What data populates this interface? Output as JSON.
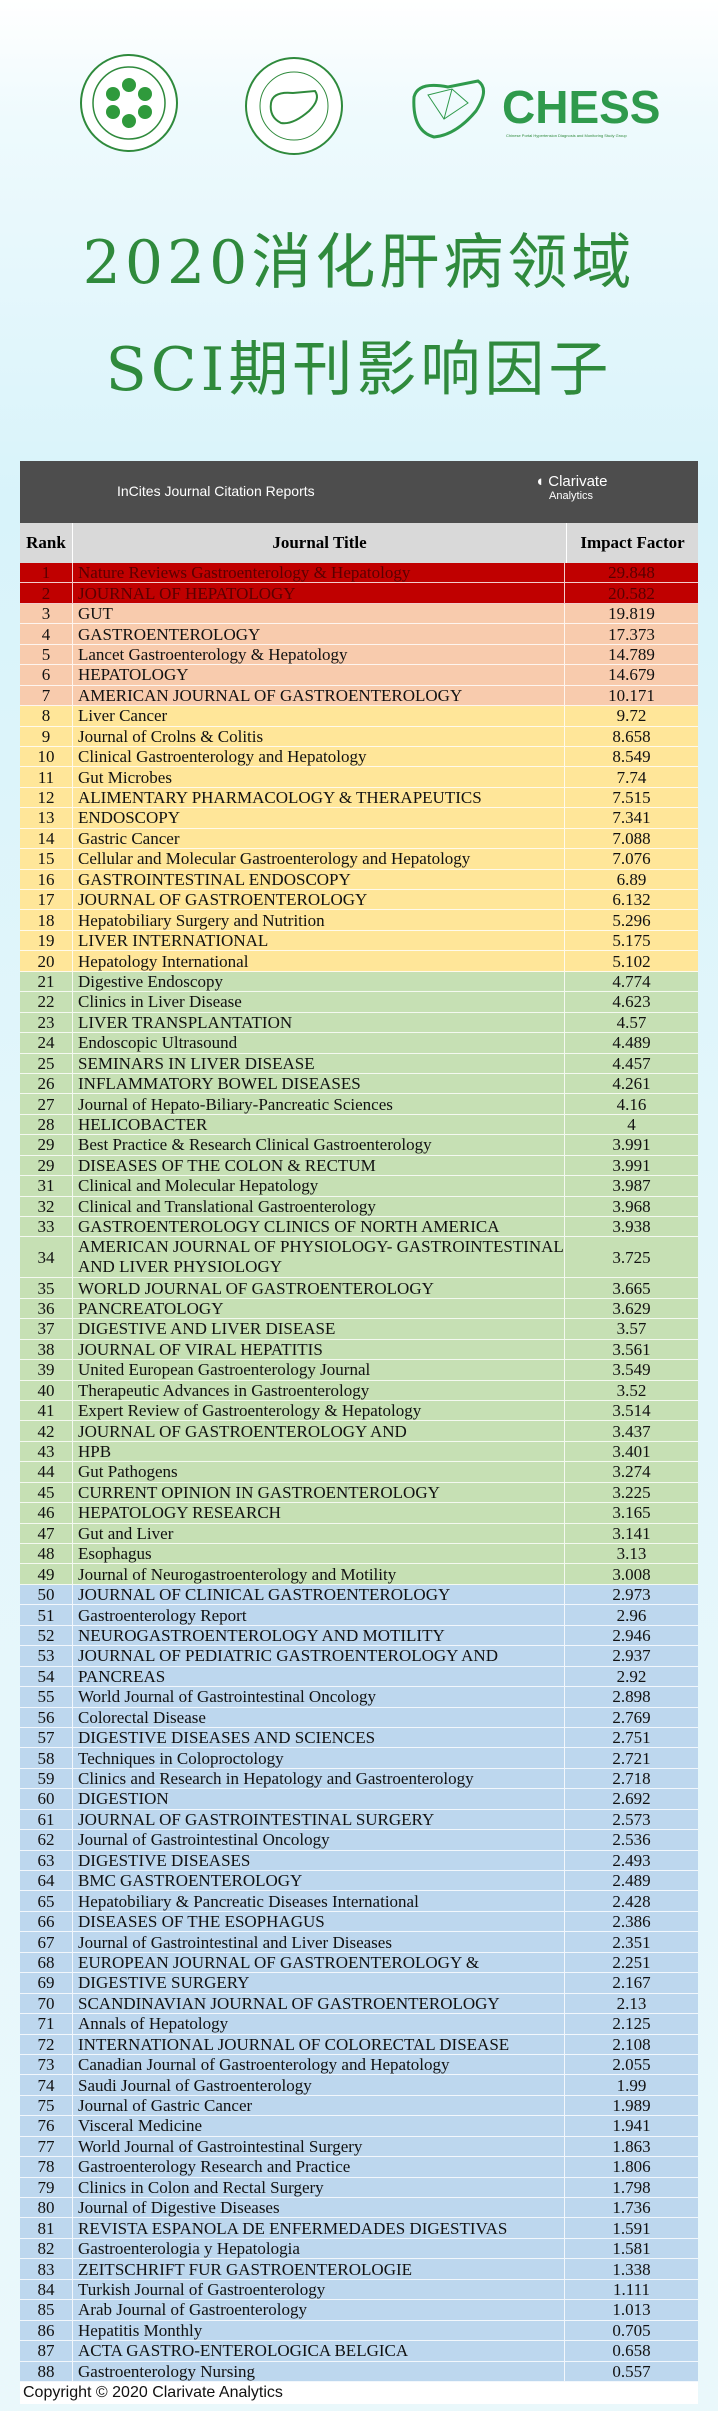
{
  "logos": {
    "chess_text": "CHESS",
    "chess_sub": "Chinese Portal Hypertension Diagnosis and Monitoring Study Group"
  },
  "title": {
    "line1": "2020消化肝病领域",
    "line2": "SCI期刊影响因子"
  },
  "table": {
    "banner": "InCites Journal Citation Reports",
    "brand": "Clarivate",
    "brand_sub": "Analytics",
    "headers": {
      "rank": "Rank",
      "title": "Journal Title",
      "impact": "Impact Factor"
    },
    "copyright": "Copyright © 2020 Clarivate Analytics",
    "tier_colors": {
      "t1": "#c00000",
      "t2": "#f8cbad",
      "t3": "#ffe699",
      "t4": "#c6e0b4",
      "t5": "#bdd7ee"
    },
    "tier_text_colors": {
      "t1": "#5a0000",
      "t2": "#111111",
      "t3": "#111111",
      "t4": "#111111",
      "t5": "#111111"
    },
    "rows": [
      [
        "1",
        "Nature Reviews Gastroenterology & Hepatology",
        "29.848",
        "t1"
      ],
      [
        "2",
        "JOURNAL OF HEPATOLOGY",
        "20.582",
        "t1"
      ],
      [
        "3",
        "GUT",
        "19.819",
        "t2"
      ],
      [
        "4",
        "GASTROENTEROLOGY",
        "17.373",
        "t2"
      ],
      [
        "5",
        "Lancet Gastroenterology & Hepatology",
        "14.789",
        "t2"
      ],
      [
        "6",
        "HEPATOLOGY",
        "14.679",
        "t2"
      ],
      [
        "7",
        "AMERICAN JOURNAL OF GASTROENTEROLOGY",
        "10.171",
        "t2"
      ],
      [
        "8",
        "Liver Cancer",
        "9.72",
        "t3"
      ],
      [
        "9",
        "Journal of Crolns & Colitis",
        "8.658",
        "t3"
      ],
      [
        "10",
        "Clinical Gastroenterology and Hepatology",
        "8.549",
        "t3"
      ],
      [
        "11",
        "Gut Microbes",
        "7.74",
        "t3"
      ],
      [
        "12",
        "ALIMENTARY PHARMACOLOGY & THERAPEUTICS",
        "7.515",
        "t3"
      ],
      [
        "13",
        "ENDOSCOPY",
        "7.341",
        "t3"
      ],
      [
        "14",
        "Gastric Cancer",
        "7.088",
        "t3"
      ],
      [
        "15",
        "Cellular and Molecular Gastroenterology and Hepatology",
        "7.076",
        "t3"
      ],
      [
        "16",
        "GASTROINTESTINAL ENDOSCOPY",
        "6.89",
        "t3"
      ],
      [
        "17",
        "JOURNAL OF GASTROENTEROLOGY",
        "6.132",
        "t3"
      ],
      [
        "18",
        "Hepatobiliary Surgery and Nutrition",
        "5.296",
        "t3"
      ],
      [
        "19",
        "LIVER INTERNATIONAL",
        "5.175",
        "t3"
      ],
      [
        "20",
        "Hepatology International",
        "5.102",
        "t3"
      ],
      [
        "21",
        "Digestive Endoscopy",
        "4.774",
        "t4"
      ],
      [
        "22",
        "Clinics in Liver Disease",
        "4.623",
        "t4"
      ],
      [
        "23",
        "LIVER TRANSPLANTATION",
        "4.57",
        "t4"
      ],
      [
        "24",
        "Endoscopic Ultrasound",
        "4.489",
        "t4"
      ],
      [
        "25",
        "SEMINARS IN LIVER DISEASE",
        "4.457",
        "t4"
      ],
      [
        "26",
        "INFLAMMATORY BOWEL DISEASES",
        "4.261",
        "t4"
      ],
      [
        "27",
        "Journal of Hepato-Biliary-Pancreatic Sciences",
        "4.16",
        "t4"
      ],
      [
        "28",
        "HELICOBACTER",
        "4",
        "t4"
      ],
      [
        "29",
        "Best Practice & Research Clinical Gastroenterology",
        "3.991",
        "t4"
      ],
      [
        "29",
        "DISEASES OF THE COLON & RECTUM",
        "3.991",
        "t4"
      ],
      [
        "31",
        "Clinical and Molecular Hepatology",
        "3.987",
        "t4"
      ],
      [
        "32",
        "Clinical and Translational Gastroenterology",
        "3.968",
        "t4"
      ],
      [
        "33",
        "GASTROENTEROLOGY CLINICS OF NORTH AMERICA",
        "3.938",
        "t4"
      ],
      [
        "34",
        "AMERICAN JOURNAL OF PHYSIOLOGY- GASTROINTESTINAL AND LIVER PHYSIOLOGY",
        "3.725",
        "t4"
      ],
      [
        "35",
        "WORLD JOURNAL OF GASTROENTEROLOGY",
        "3.665",
        "t4"
      ],
      [
        "36",
        "PANCREATOLOGY",
        "3.629",
        "t4"
      ],
      [
        "37",
        "DIGESTIVE AND LIVER DISEASE",
        "3.57",
        "t4"
      ],
      [
        "38",
        "JOURNAL OF VIRAL HEPATITIS",
        "3.561",
        "t4"
      ],
      [
        "39",
        "United European Gastroenterology Journal",
        "3.549",
        "t4"
      ],
      [
        "40",
        "Therapeutic Advances in Gastroenterology",
        "3.52",
        "t4"
      ],
      [
        "41",
        "Expert Review of Gastroenterology & Hepatology",
        "3.514",
        "t4"
      ],
      [
        "42",
        "JOURNAL OF GASTROENTEROLOGY AND",
        "3.437",
        "t4"
      ],
      [
        "43",
        "HPB",
        "3.401",
        "t4"
      ],
      [
        "44",
        "Gut Pathogens",
        "3.274",
        "t4"
      ],
      [
        "45",
        "CURRENT OPINION IN GASTROENTEROLOGY",
        "3.225",
        "t4"
      ],
      [
        "46",
        "HEPATOLOGY RESEARCH",
        "3.165",
        "t4"
      ],
      [
        "47",
        "Gut and Liver",
        "3.141",
        "t4"
      ],
      [
        "48",
        "Esophagus",
        "3.13",
        "t4"
      ],
      [
        "49",
        "Journal of Neurogastroenterology and Motility",
        "3.008",
        "t4"
      ],
      [
        "50",
        "JOURNAL OF CLINICAL GASTROENTEROLOGY",
        "2.973",
        "t5"
      ],
      [
        "51",
        "Gastroenterology Report",
        "2.96",
        "t5"
      ],
      [
        "52",
        "NEUROGASTROENTEROLOGY AND MOTILITY",
        "2.946",
        "t5"
      ],
      [
        "53",
        "JOURNAL OF PEDIATRIC GASTROENTEROLOGY AND",
        "2.937",
        "t5"
      ],
      [
        "54",
        "PANCREAS",
        "2.92",
        "t5"
      ],
      [
        "55",
        "World Journal of Gastrointestinal Oncology",
        "2.898",
        "t5"
      ],
      [
        "56",
        "Colorectal Disease",
        "2.769",
        "t5"
      ],
      [
        "57",
        "DIGESTIVE DISEASES AND SCIENCES",
        "2.751",
        "t5"
      ],
      [
        "58",
        "Techniques in Coloproctology",
        "2.721",
        "t5"
      ],
      [
        "59",
        "Clinics and Research in Hepatology and Gastroenterology",
        "2.718",
        "t5"
      ],
      [
        "60",
        "DIGESTION",
        "2.692",
        "t5"
      ],
      [
        "61",
        "JOURNAL OF GASTROINTESTINAL SURGERY",
        "2.573",
        "t5"
      ],
      [
        "62",
        "Journal of Gastrointestinal Oncology",
        "2.536",
        "t5"
      ],
      [
        "63",
        "DIGESTIVE DISEASES",
        "2.493",
        "t5"
      ],
      [
        "64",
        "BMC GASTROENTEROLOGY",
        "2.489",
        "t5"
      ],
      [
        "65",
        "Hepatobiliary & Pancreatic Diseases International",
        "2.428",
        "t5"
      ],
      [
        "66",
        "DISEASES OF THE ESOPHAGUS",
        "2.386",
        "t5"
      ],
      [
        "67",
        "Journal of Gastrointestinal and Liver Diseases",
        "2.351",
        "t5"
      ],
      [
        "68",
        "EUROPEAN JOURNAL OF GASTROENTEROLOGY &",
        "2.251",
        "t5"
      ],
      [
        "69",
        "DIGESTIVE SURGERY",
        "2.167",
        "t5"
      ],
      [
        "70",
        "SCANDINAVIAN JOURNAL OF GASTROENTEROLOGY",
        "2.13",
        "t5"
      ],
      [
        "71",
        "Annals of Hepatology",
        "2.125",
        "t5"
      ],
      [
        "72",
        "INTERNATIONAL JOURNAL OF COLORECTAL DISEASE",
        "2.108",
        "t5"
      ],
      [
        "73",
        "Canadian Journal of Gastroenterology and Hepatology",
        "2.055",
        "t5"
      ],
      [
        "74",
        "Saudi Journal of Gastroenterology",
        "1.99",
        "t5"
      ],
      [
        "75",
        "Journal of Gastric Cancer",
        "1.989",
        "t5"
      ],
      [
        "76",
        "Visceral Medicine",
        "1.941",
        "t5"
      ],
      [
        "77",
        "World Journal of Gastrointestinal Surgery",
        "1.863",
        "t5"
      ],
      [
        "78",
        "Gastroenterology Research and Practice",
        "1.806",
        "t5"
      ],
      [
        "79",
        "Clinics in Colon and Rectal Surgery",
        "1.798",
        "t5"
      ],
      [
        "80",
        "Journal of Digestive Diseases",
        "1.736",
        "t5"
      ],
      [
        "81",
        "REVISTA ESPANOLA DE ENFERMEDADES DIGESTIVAS",
        "1.591",
        "t5"
      ],
      [
        "82",
        "Gastroenterologia y Hepatologia",
        "1.581",
        "t5"
      ],
      [
        "83",
        "ZEITSCHRIFT FUR GASTROENTEROLOGIE",
        "1.338",
        "t5"
      ],
      [
        "84",
        "Turkish Journal of Gastroenterology",
        "1.111",
        "t5"
      ],
      [
        "85",
        "Arab Journal of Gastroenterology",
        "1.013",
        "t5"
      ],
      [
        "86",
        "Hepatitis Monthly",
        "0.705",
        "t5"
      ],
      [
        "87",
        "ACTA GASTRO-ENTEROLOGICA BELGICA",
        "0.658",
        "t5"
      ],
      [
        "88",
        "Gastroenterology Nursing",
        "0.557",
        "t5"
      ]
    ]
  }
}
